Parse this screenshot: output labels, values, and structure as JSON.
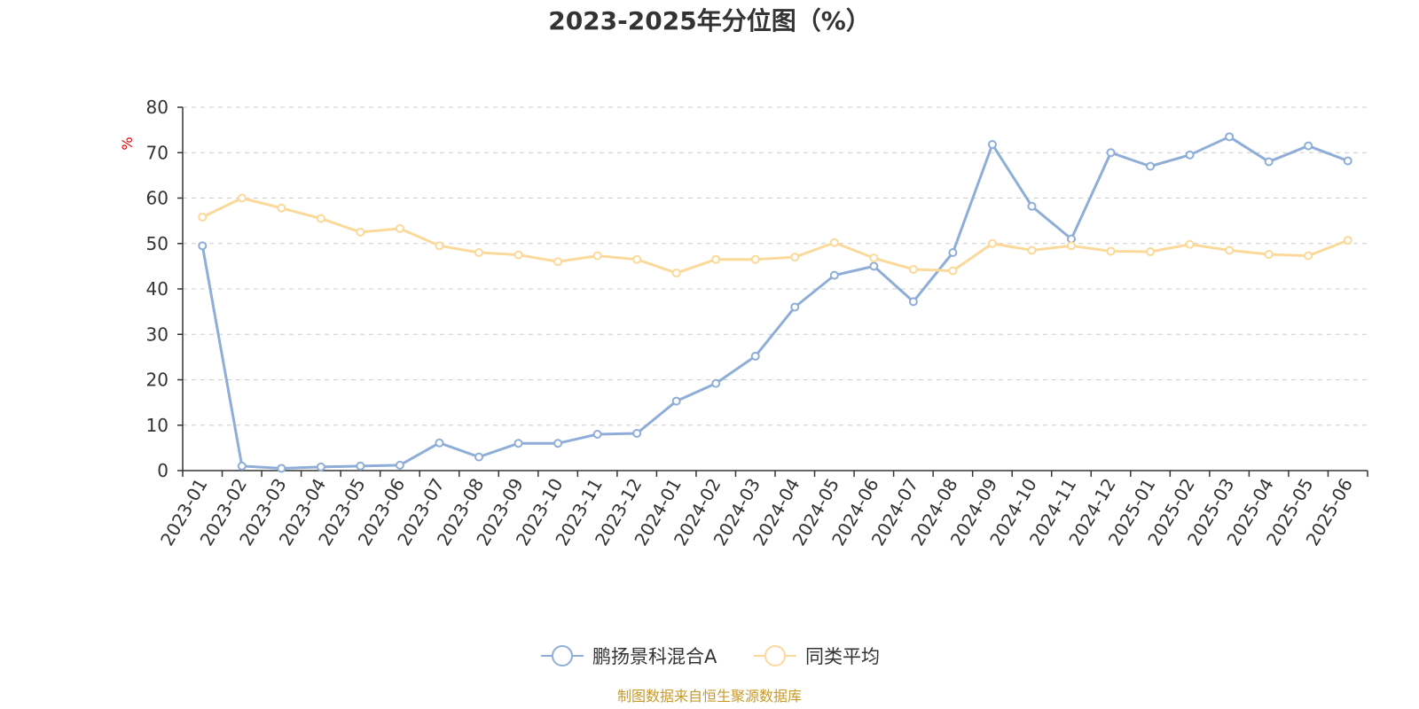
{
  "chart_data": {
    "type": "line",
    "title": "2023-2025年分位图（%）",
    "ylabel": "%",
    "ylim": [
      0,
      80
    ],
    "yticks": [
      0,
      10,
      20,
      30,
      40,
      50,
      60,
      70,
      80
    ],
    "grid": true,
    "legend_position": "bottom-center",
    "categories": [
      "2023-01",
      "2023-02",
      "2023-03",
      "2023-04",
      "2023-05",
      "2023-06",
      "2023-07",
      "2023-08",
      "2023-09",
      "2023-10",
      "2023-11",
      "2023-12",
      "2024-01",
      "2024-02",
      "2024-03",
      "2024-04",
      "2024-05",
      "2024-06",
      "2024-07",
      "2024-08",
      "2024-09",
      "2024-10",
      "2024-11",
      "2024-12",
      "2025-01",
      "2025-02",
      "2025-03",
      "2025-04",
      "2025-05",
      "2025-06"
    ],
    "series": [
      {
        "name": "鹏扬景科混合A",
        "color": "#8eaed8",
        "values": [
          49.5,
          1.0,
          0.5,
          0.8,
          1.0,
          1.2,
          6.1,
          3.0,
          6.0,
          6.0,
          8.0,
          8.2,
          15.3,
          19.2,
          25.2,
          36.0,
          43.0,
          45.0,
          37.2,
          48.0,
          71.8,
          58.2,
          51.0,
          70.0,
          67.0,
          69.5,
          73.5,
          68.0,
          71.5,
          68.2
        ]
      },
      {
        "name": "同类平均",
        "color": "#fbd99a",
        "values": [
          55.8,
          60.0,
          57.8,
          55.5,
          52.5,
          53.3,
          49.5,
          48.0,
          47.5,
          46.0,
          47.3,
          46.5,
          43.5,
          46.5,
          46.5,
          47.0,
          50.2,
          46.8,
          44.3,
          44.0,
          50.0,
          48.5,
          49.5,
          48.3,
          48.2,
          49.8,
          48.5,
          47.6,
          47.3,
          50.7
        ]
      }
    ]
  },
  "footer": {
    "source": "制图数据来自恒生聚源数据库"
  },
  "colors": {
    "unit_label": "#e00000",
    "footer": "#c89a2c",
    "text": "#333333"
  }
}
